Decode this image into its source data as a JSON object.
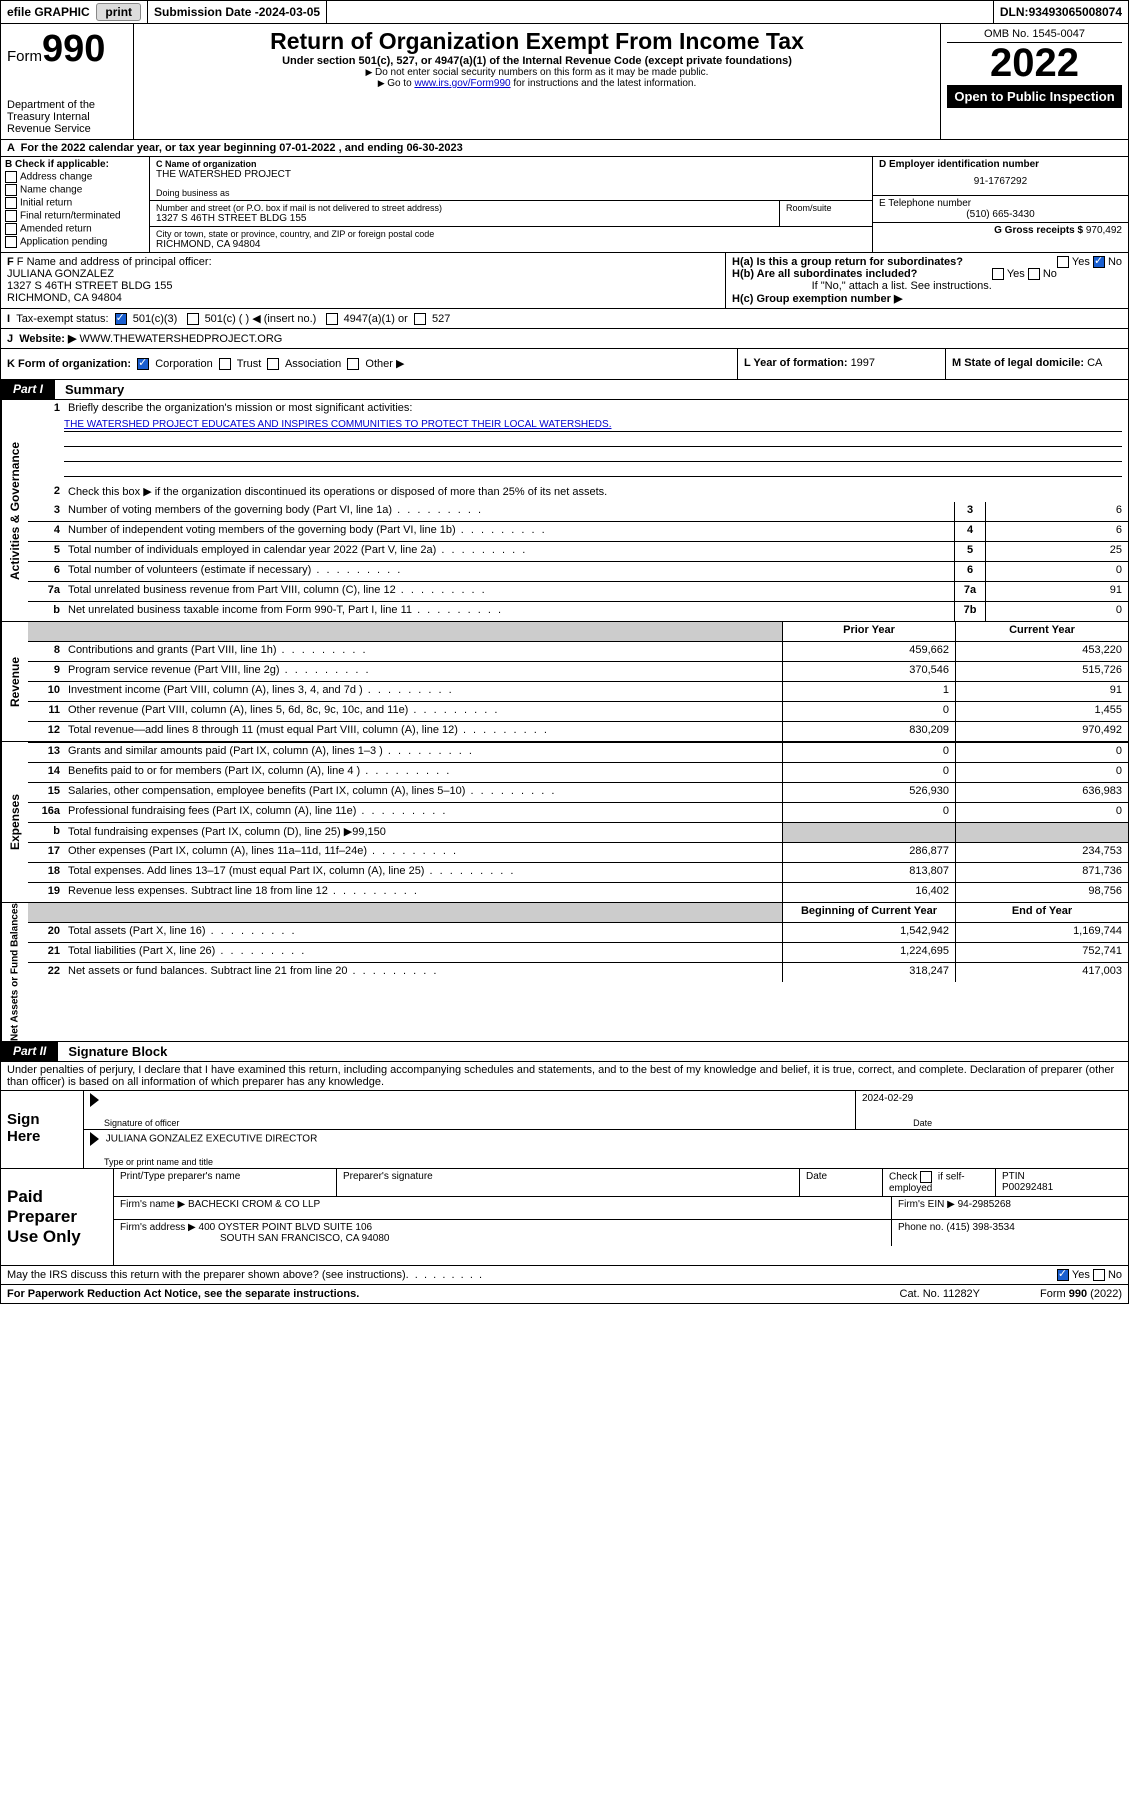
{
  "topbar": {
    "efile": "efile GRAPHIC",
    "print": "print",
    "sub_label": "Submission Date - ",
    "sub_date": "2024-03-05",
    "dln_label": "DLN: ",
    "dln": "93493065008074"
  },
  "header": {
    "form_word": "Form",
    "form_num": "990",
    "title": "Return of Organization Exempt From Income Tax",
    "subtitle": "Under section 501(c), 527, or 4947(a)(1) of the Internal Revenue Code (except private foundations)",
    "note1": "Do not enter social security numbers on this form as it may be made public.",
    "note2_pre": "Go to ",
    "note2_link": "www.irs.gov/Form990",
    "note2_post": " for instructions and the latest information.",
    "omb": "OMB No. 1545-0047",
    "year": "2022",
    "open": "Open to Public Inspection",
    "dept": "Department of the Treasury Internal Revenue Service"
  },
  "period": {
    "text_a": "For the 2022 calendar year, or tax year beginning ",
    "begin": "07-01-2022",
    "text_b": " , and ending ",
    "end": "06-30-2023"
  },
  "boxB": {
    "label": "B Check if applicable:",
    "items": [
      "Address change",
      "Name change",
      "Initial return",
      "Final return/terminated",
      "Amended return",
      "Application pending"
    ]
  },
  "boxC": {
    "name_lbl": "C Name of organization",
    "name": "THE WATERSHED PROJECT",
    "dba_lbl": "Doing business as",
    "street_lbl": "Number and street (or P.O. box if mail is not delivered to street address)",
    "room_lbl": "Room/suite",
    "street": "1327 S 46TH STREET BLDG 155",
    "city_lbl": "City or town, state or province, country, and ZIP or foreign postal code",
    "city": "RICHMOND, CA  94804"
  },
  "boxD": {
    "lbl": "D Employer identification number",
    "val": "91-1767292"
  },
  "boxE": {
    "lbl": "E Telephone number",
    "val": "(510) 665-3430"
  },
  "boxG": {
    "lbl": "G Gross receipts $ ",
    "val": "970,492"
  },
  "boxF": {
    "lbl": "F Name and address of principal officer:",
    "name": "JULIANA GONZALEZ",
    "addr1": "1327 S 46TH STREET BLDG 155",
    "addr2": "RICHMOND, CA  94804"
  },
  "boxH": {
    "a_lbl": "H(a)  Is this a group return for subordinates?",
    "a_yes": "Yes",
    "a_no": "No",
    "b_lbl": "H(b)  Are all subordinates included?",
    "b_yes": "Yes",
    "b_no": "No",
    "b_note": "If \"No,\" attach a list. See instructions.",
    "c_lbl": "H(c)  Group exemption number ▶"
  },
  "rowI": {
    "lbl": "Tax-exempt status:",
    "o1": "501(c)(3)",
    "o2": "501(c) (  ) ◀ (insert no.)",
    "o3": "4947(a)(1) or",
    "o4": "527"
  },
  "rowJ": {
    "lbl": "Website: ▶ ",
    "val": "WWW.THEWATERSHEDPROJECT.ORG"
  },
  "rowK": {
    "lbl": "K Form of organization:",
    "o1": "Corporation",
    "o2": "Trust",
    "o3": "Association",
    "o4": "Other ▶"
  },
  "rowL": {
    "lbl": "L Year of formation: ",
    "val": "1997"
  },
  "rowM": {
    "lbl": "M State of legal domicile: ",
    "val": "CA"
  },
  "part1": {
    "hdr": "Part I",
    "title": "Summary"
  },
  "summary": {
    "sec_labels": {
      "ag": "Activities & Governance",
      "rev": "Revenue",
      "exp": "Expenses",
      "net": "Net Assets or Fund Balances"
    },
    "l1_lbl": "Briefly describe the organization's mission or most significant activities:",
    "l1_mission": "THE WATERSHED PROJECT EDUCATES AND INSPIRES COMMUNITIES TO PROTECT THEIR LOCAL WATERSHEDS.",
    "l2_lbl": "Check this box ▶        if the organization discontinued its operations or disposed of more than 25% of its net assets.",
    "lines_ag": [
      {
        "n": "3",
        "d": "Number of voting members of the governing body (Part VI, line 1a)",
        "r": "3",
        "v": "6"
      },
      {
        "n": "4",
        "d": "Number of independent voting members of the governing body (Part VI, line 1b)",
        "r": "4",
        "v": "6"
      },
      {
        "n": "5",
        "d": "Total number of individuals employed in calendar year 2022 (Part V, line 2a)",
        "r": "5",
        "v": "25"
      },
      {
        "n": "6",
        "d": "Total number of volunteers (estimate if necessary)",
        "r": "6",
        "v": "0"
      },
      {
        "n": "7a",
        "d": "Total unrelated business revenue from Part VIII, column (C), line 12",
        "r": "7a",
        "v": "91"
      },
      {
        "n": "b",
        "d": "Net unrelated business taxable income from Form 990-T, Part I, line 11",
        "r": "7b",
        "v": "0"
      }
    ],
    "col_prior": "Prior Year",
    "col_curr": "Current Year",
    "lines_rev": [
      {
        "n": "8",
        "d": "Contributions and grants (Part VIII, line 1h)",
        "p": "459,662",
        "c": "453,220"
      },
      {
        "n": "9",
        "d": "Program service revenue (Part VIII, line 2g)",
        "p": "370,546",
        "c": "515,726"
      },
      {
        "n": "10",
        "d": "Investment income (Part VIII, column (A), lines 3, 4, and 7d )",
        "p": "1",
        "c": "91"
      },
      {
        "n": "11",
        "d": "Other revenue (Part VIII, column (A), lines 5, 6d, 8c, 9c, 10c, and 11e)",
        "p": "0",
        "c": "1,455"
      },
      {
        "n": "12",
        "d": "Total revenue—add lines 8 through 11 (must equal Part VIII, column (A), line 12)",
        "p": "830,209",
        "c": "970,492"
      }
    ],
    "lines_exp": [
      {
        "n": "13",
        "d": "Grants and similar amounts paid (Part IX, column (A), lines 1–3 )",
        "p": "0",
        "c": "0"
      },
      {
        "n": "14",
        "d": "Benefits paid to or for members (Part IX, column (A), line 4 )",
        "p": "0",
        "c": "0"
      },
      {
        "n": "15",
        "d": "Salaries, other compensation, employee benefits (Part IX, column (A), lines 5–10)",
        "p": "526,930",
        "c": "636,983"
      },
      {
        "n": "16a",
        "d": "Professional fundraising fees (Part IX, column (A), line 11e)",
        "p": "0",
        "c": "0"
      }
    ],
    "l16b": {
      "n": "b",
      "d": "Total fundraising expenses (Part IX, column (D), line 25) ▶",
      "v": "99,150"
    },
    "lines_exp2": [
      {
        "n": "17",
        "d": "Other expenses (Part IX, column (A), lines 11a–11d, 11f–24e)",
        "p": "286,877",
        "c": "234,753"
      },
      {
        "n": "18",
        "d": "Total expenses. Add lines 13–17 (must equal Part IX, column (A), line 25)",
        "p": "813,807",
        "c": "871,736"
      },
      {
        "n": "19",
        "d": "Revenue less expenses. Subtract line 18 from line 12",
        "p": "16,402",
        "c": "98,756"
      }
    ],
    "col_begin": "Beginning of Current Year",
    "col_end": "End of Year",
    "lines_net": [
      {
        "n": "20",
        "d": "Total assets (Part X, line 16)",
        "p": "1,542,942",
        "c": "1,169,744"
      },
      {
        "n": "21",
        "d": "Total liabilities (Part X, line 26)",
        "p": "1,224,695",
        "c": "752,741"
      },
      {
        "n": "22",
        "d": "Net assets or fund balances. Subtract line 21 from line 20",
        "p": "318,247",
        "c": "417,003"
      }
    ]
  },
  "part2": {
    "hdr": "Part II",
    "title": "Signature Block"
  },
  "sig": {
    "decl": "Under penalties of perjury, I declare that I have examined this return, including accompanying schedules and statements, and to the best of my knowledge and belief, it is true, correct, and complete. Declaration of preparer (other than officer) is based on all information of which preparer has any knowledge.",
    "sign_here": "Sign Here",
    "sig_of": "Signature of officer",
    "date_lbl": "Date",
    "date": "2024-02-29",
    "name": "JULIANA GONZALEZ  EXECUTIVE DIRECTOR",
    "name_lbl": "Type or print name and title"
  },
  "prep": {
    "hdr": "Paid Preparer Use Only",
    "c1": "Print/Type preparer's name",
    "c2": "Preparer's signature",
    "c3": "Date",
    "c4a": "Check",
    "c4b": "if self-employed",
    "c5": "PTIN",
    "ptin": "P00292481",
    "firm_lbl": "Firm's name    ▶ ",
    "firm": "BACHECKI CROM & CO LLP",
    "ein_lbl": "Firm's EIN ▶ ",
    "ein": "94-2985268",
    "addr_lbl": "Firm's address ▶ ",
    "addr1": "400 OYSTER POINT BLVD SUITE 106",
    "addr2": "SOUTH SAN FRANCISCO, CA  94080",
    "phone_lbl": "Phone no. ",
    "phone": "(415) 398-3534"
  },
  "footer": {
    "discuss": "May the IRS discuss this return with the preparer shown above? (see instructions)",
    "yes": "Yes",
    "no": "No",
    "pra": "For Paperwork Reduction Act Notice, see the separate instructions.",
    "cat": "Cat. No. 11282Y",
    "form": "Form 990 (2022)"
  }
}
